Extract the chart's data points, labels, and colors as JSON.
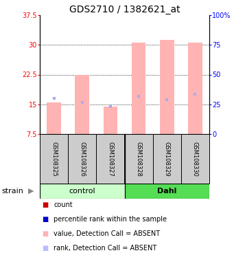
{
  "title": "GDS2710 / 1382621_at",
  "samples": [
    "GSM108325",
    "GSM108326",
    "GSM108327",
    "GSM108328",
    "GSM108329",
    "GSM108330"
  ],
  "groups": [
    "control",
    "control",
    "control",
    "Dahl",
    "Dahl",
    "Dahl"
  ],
  "ylim_left": [
    7.5,
    37.5
  ],
  "ylim_right": [
    0,
    100
  ],
  "yticks_left": [
    7.5,
    15.0,
    22.5,
    30.0,
    37.5
  ],
  "yticks_right": [
    0,
    25,
    50,
    75,
    100
  ],
  "ytick_labels_left": [
    "7.5",
    "15",
    "22.5",
    "30",
    "37.5"
  ],
  "ytick_labels_right": [
    "0",
    "25",
    "50",
    "75",
    "100%"
  ],
  "pink_bar_values": [
    15.5,
    22.5,
    14.5,
    30.5,
    31.2,
    30.5
  ],
  "blue_square_values": [
    16.5,
    15.5,
    14.5,
    17.0,
    16.2,
    17.5
  ],
  "bar_bottom": 7.5,
  "pink_color": "#FFB3B3",
  "blue_color": "#AAAAEE",
  "dotted_grid_values": [
    15.0,
    22.5,
    30.0
  ],
  "title_fontsize": 10,
  "tick_fontsize": 7,
  "sample_fontsize": 6,
  "legend_fontsize": 7,
  "bar_width": 0.5,
  "control_color": "#CCFFCC",
  "dahl_color": "#55DD55",
  "gray_color": "#CCCCCC"
}
